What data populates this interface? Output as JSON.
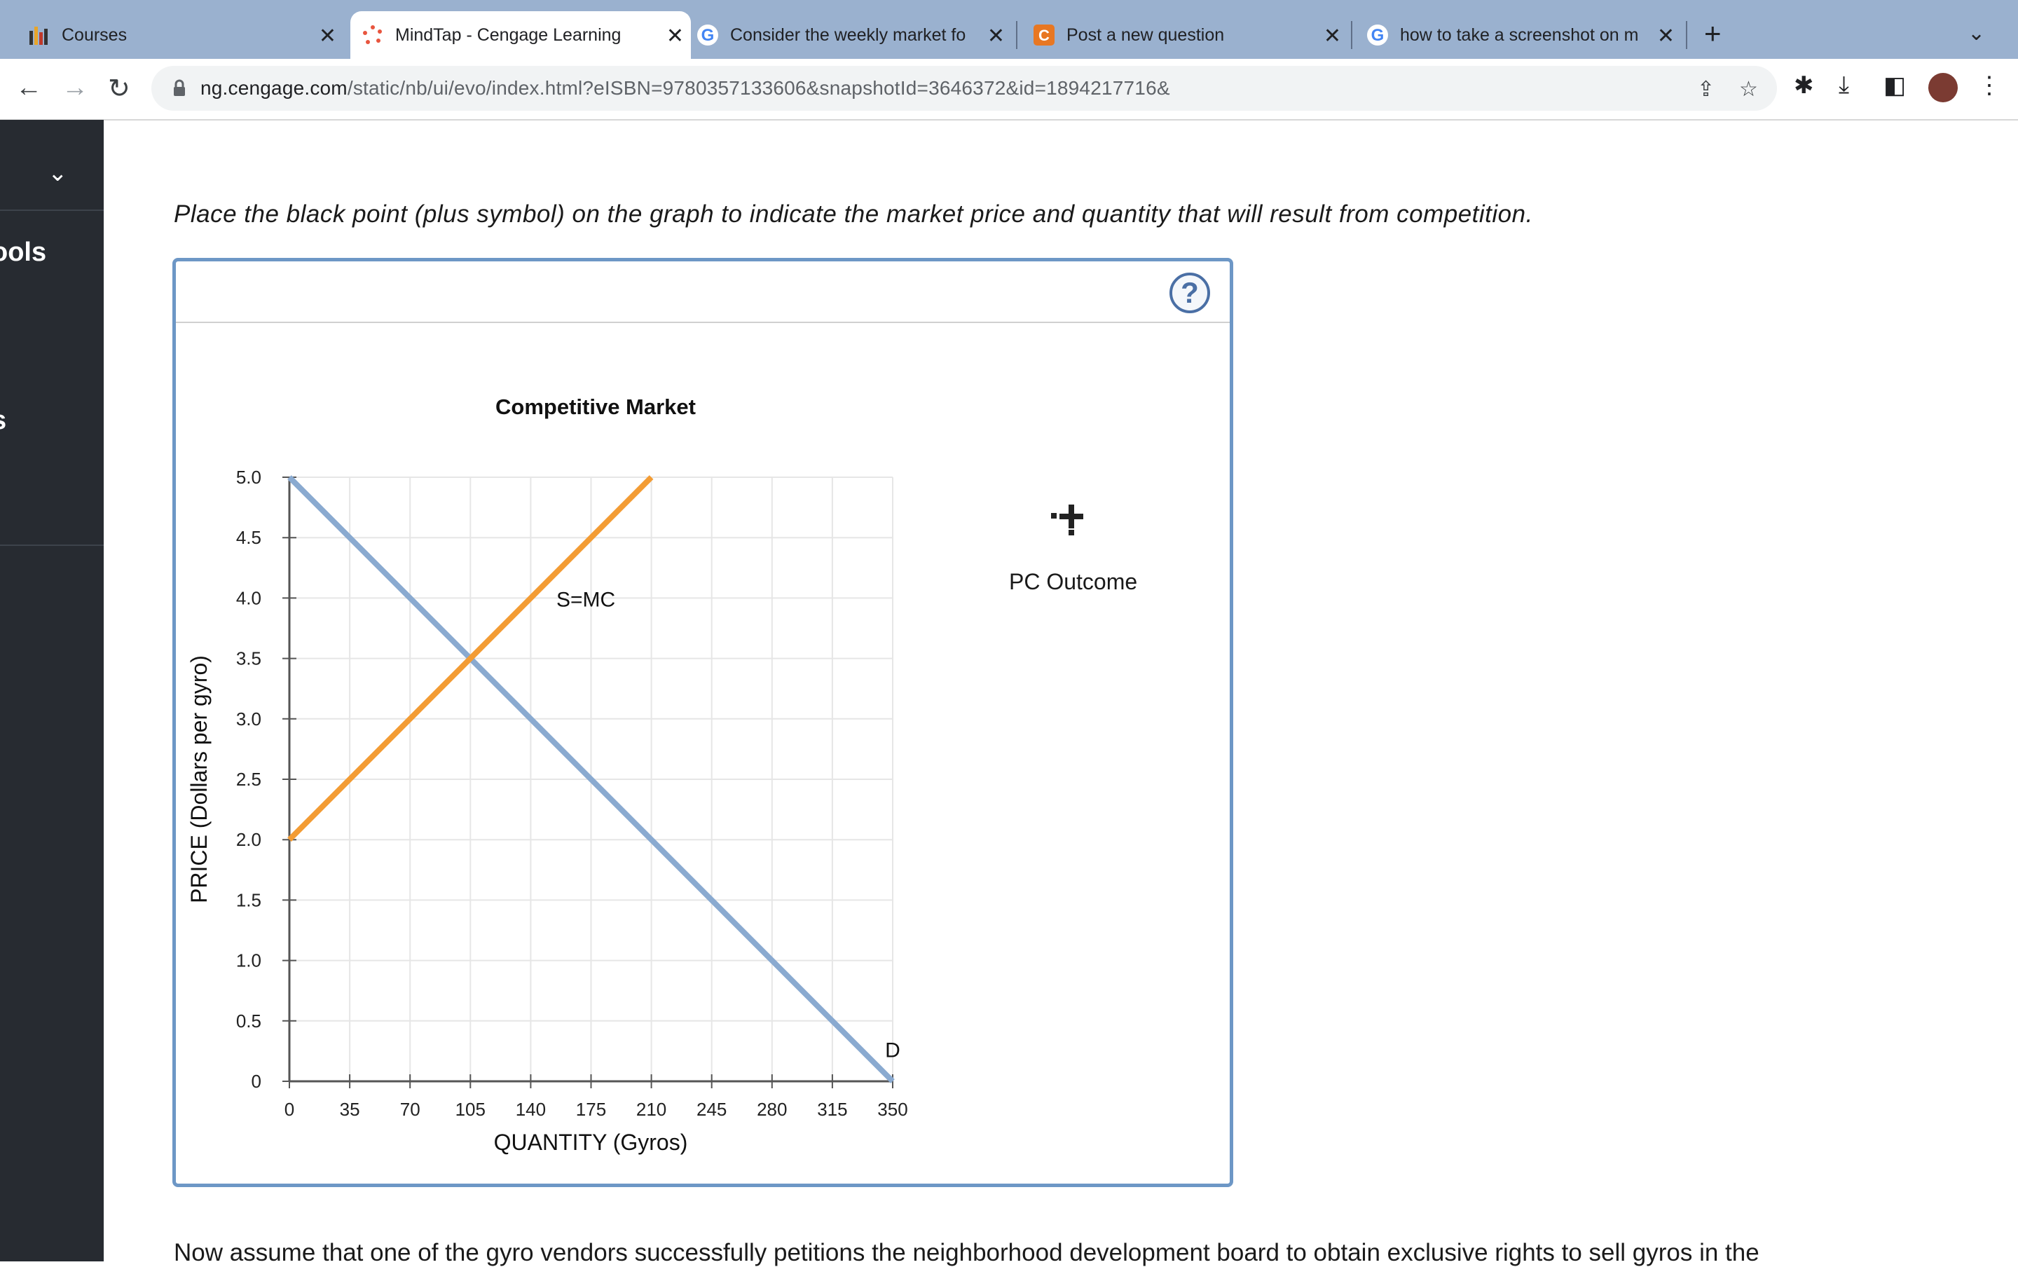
{
  "browser": {
    "tabs": [
      {
        "title": "Courses",
        "icon": "bar-chart-favicon",
        "active": false
      },
      {
        "title": "MindTap - Cengage Learning",
        "icon": "mindtap-favicon",
        "active": true
      },
      {
        "title": "Consider the weekly market fo",
        "icon": "google-favicon",
        "active": false
      },
      {
        "title": "Post a new question",
        "icon": "chegg-favicon",
        "active": false
      },
      {
        "title": "how to take a screenshot on m",
        "icon": "google-favicon",
        "active": false
      }
    ],
    "url_host": "ng.cengage.com",
    "url_path": "/static/nb/ui/evo/index.html?eISBN=9780357133606&snapshotId=3646372&id=1894217716&"
  },
  "sidebar": {
    "tools_label": "ools",
    "partial_label": "s"
  },
  "instruction": "Place the black point (plus symbol) on the graph to indicate the market price and quantity that will result from competition.",
  "tool": {
    "label": "PC Outcome",
    "icon": "plus-symbol-icon"
  },
  "bottom_text": "Now assume that one of the gyro vendors successfully petitions the neighborhood development board to obtain exclusive rights to sell gyros in the",
  "chart_data": {
    "type": "line",
    "title": "Competitive Market",
    "xlabel": "QUANTITY (Gyros)",
    "ylabel": "PRICE (Dollars per gyro)",
    "xlim": [
      0,
      350
    ],
    "ylim": [
      0,
      5
    ],
    "x_ticks": [
      "0",
      "35",
      "70",
      "105",
      "140",
      "175",
      "210",
      "245",
      "280",
      "315",
      "350"
    ],
    "y_ticks": [
      "0",
      "0.5",
      "1.0",
      "1.5",
      "2.0",
      "2.5",
      "3.0",
      "3.5",
      "4.0",
      "4.5",
      "5.0"
    ],
    "grid": true,
    "series": [
      {
        "name": "D",
        "color": "#8aaad0",
        "points": [
          [
            0,
            5.0
          ],
          [
            350,
            0
          ]
        ]
      },
      {
        "name": "S=MC",
        "color": "#f39c34",
        "points": [
          [
            0,
            2.0
          ],
          [
            210,
            5.0
          ]
        ]
      }
    ]
  }
}
